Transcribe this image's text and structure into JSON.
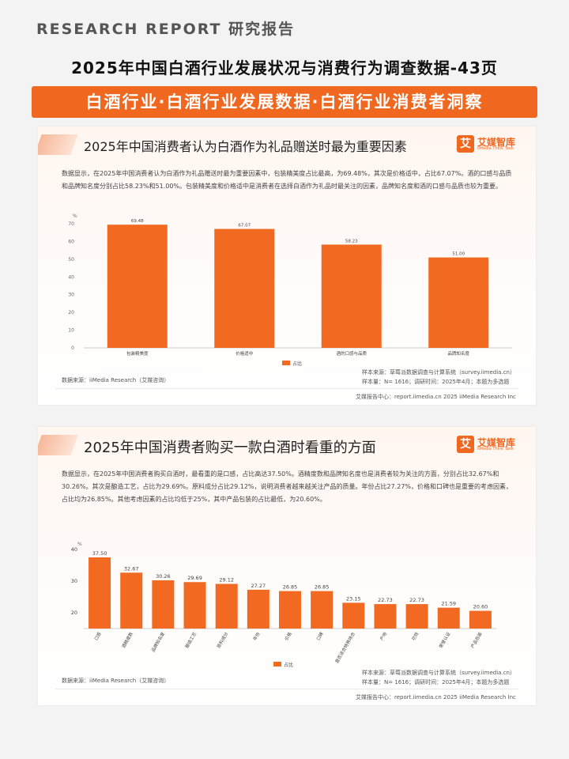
{
  "header": {
    "report_label": "RESEARCH  REPORT  研究报告",
    "main_title": "2025年中国白酒行业发展状况与消费行为调查数据-43页",
    "banner": "白酒行业·白酒行业发展数据·白酒行业消费者洞察"
  },
  "logo": {
    "mark": "艾",
    "name": "艾媒智库",
    "sub": "iiMedia Think Tank"
  },
  "cards": [
    {
      "title": "2025年中国消费者认为白酒作为礼品赠送时最为重要因素",
      "description": "数据显示，在2025年中国消费者认为白酒作为礼品赠送时最为重要因素中，包装精美度占比最高，为69.48%，其次是价格适中，占比67.07%。酒的口感与品质和品牌知名度分别占比58.23%和51.00%。包装精美度和价格适中是消费者在选择白酒作为礼品时最关注的因素，品牌知名度和酒的口感与品质也较为重要。",
      "data_source": "数据来源：iiMedia Research（艾媒咨询）",
      "sample_source": "样本来源：草莓派数据调查与计算系统（survey.iimedia.cn）",
      "sample_size": "样本量：N= 1616；调研时间：2025年4月；本题为多选题",
      "report_center": "艾媒报告中心：report.iimedia.cn    2025 iiMedia Research Inc"
    },
    {
      "title": "2025年中国消费者购买一款白酒时看重的方面",
      "description": "数据显示，在2025年中国消费者购买白酒时，最看重的是口感，占比高达37.50%。酒精度数和品牌知名度也是消费者较为关注的方面，分别占比32.67%和30.26%。其次是酿造工艺，占比为29.69%。原料成分占比29.12%，说明消费者越来越关注产品的质量。年份占比27.27%，价格和口碑也是重要的考虑因素，占比均为26.85%。其他考虑因素的占比均低于25%，其中产品包装的占比最低，为20.60%。",
      "data_source": "数据来源：iiMedia Research（艾媒咨询）",
      "sample_source": "样本来源：草莓派数据调查与计算系统（survey.iimedia.cn）",
      "sample_size": "样本量：N= 1616；调研时间：2025年4月；本题为多选题",
      "report_center": "艾媒报告中心：report.iimedia.cn    2025 iiMedia Research Inc"
    }
  ],
  "colors": {
    "accent": "#f0671f",
    "bar": "#f26a21"
  },
  "chart_data": [
    {
      "type": "bar",
      "title": "2025年中国消费者认为白酒作为礼品赠送时最为重要因素",
      "unit": "%",
      "categories": [
        "包装精美度",
        "价格适中",
        "酒的口感与品质",
        "品牌知名度"
      ],
      "series": [
        {
          "name": "占比",
          "values": [
            69.48,
            67.07,
            58.23,
            51.0
          ]
        }
      ],
      "value_labels": [
        "69.48",
        "67.07",
        "58.23",
        "51.00"
      ],
      "yticks": [
        "0",
        "10",
        "20",
        "30",
        "40",
        "50",
        "60",
        "70"
      ],
      "ylim": [
        0,
        70
      ],
      "legend": "bottom-center"
    },
    {
      "type": "bar",
      "title": "2025年中国消费者购买一款白酒时看重的方面",
      "unit": "%",
      "categories": [
        "口感",
        "酒精度数",
        "品牌知名度",
        "酿造工艺",
        "原料成分",
        "年份",
        "价格",
        "口碑",
        "是否适合特殊场合",
        "产地",
        "功效",
        "荣誉认证",
        "产品包装"
      ],
      "series": [
        {
          "name": "占比",
          "values": [
            37.5,
            32.67,
            30.26,
            29.69,
            29.12,
            27.27,
            26.85,
            26.85,
            23.15,
            22.73,
            22.73,
            21.59,
            20.6
          ]
        }
      ],
      "value_labels": [
        "37.50",
        "32.67",
        "30.26",
        "29.69",
        "29.12",
        "27.27",
        "26.85",
        "26.85",
        "23.15",
        "22.73",
        "22.73",
        "21.59",
        "20.60"
      ],
      "yticks": [
        "20",
        "30",
        "40"
      ],
      "ylim": [
        15,
        40
      ],
      "legend": "bottom-center"
    }
  ]
}
